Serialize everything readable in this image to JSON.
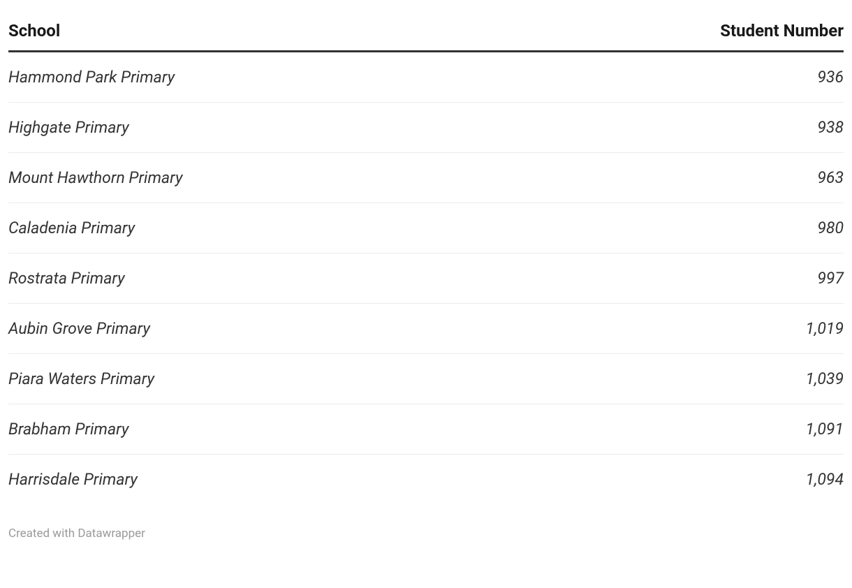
{
  "table": {
    "type": "table",
    "columns": [
      {
        "label": "School",
        "align": "left"
      },
      {
        "label": "Student Number",
        "align": "right"
      }
    ],
    "rows": [
      {
        "school": "Hammond Park Primary",
        "students": "936"
      },
      {
        "school": "Highgate Primary",
        "students": "938"
      },
      {
        "school": "Mount Hawthorn Primary",
        "students": "963"
      },
      {
        "school": "Caladenia Primary",
        "students": "980"
      },
      {
        "school": "Rostrata Primary",
        "students": "997"
      },
      {
        "school": "Aubin Grove Primary",
        "students": "1,019"
      },
      {
        "school": "Piara Waters Primary",
        "students": "1,039"
      },
      {
        "school": "Brabham Primary",
        "students": "1,091"
      },
      {
        "school": "Harrisdale Primary",
        "students": "1,094"
      }
    ],
    "header_fontsize": 24,
    "header_fontweight": 700,
    "header_color": "#181818",
    "header_border_color": "#333333",
    "header_border_width": 3,
    "cell_fontsize": 23,
    "cell_fontstyle": "italic",
    "cell_color": "#333333",
    "row_border_color": "#ececec",
    "row_border_width": 1,
    "background_color": "#ffffff",
    "row_padding": 22
  },
  "footer": {
    "text": "Created with Datawrapper",
    "fontsize": 17,
    "color": "#9a9a9a"
  }
}
